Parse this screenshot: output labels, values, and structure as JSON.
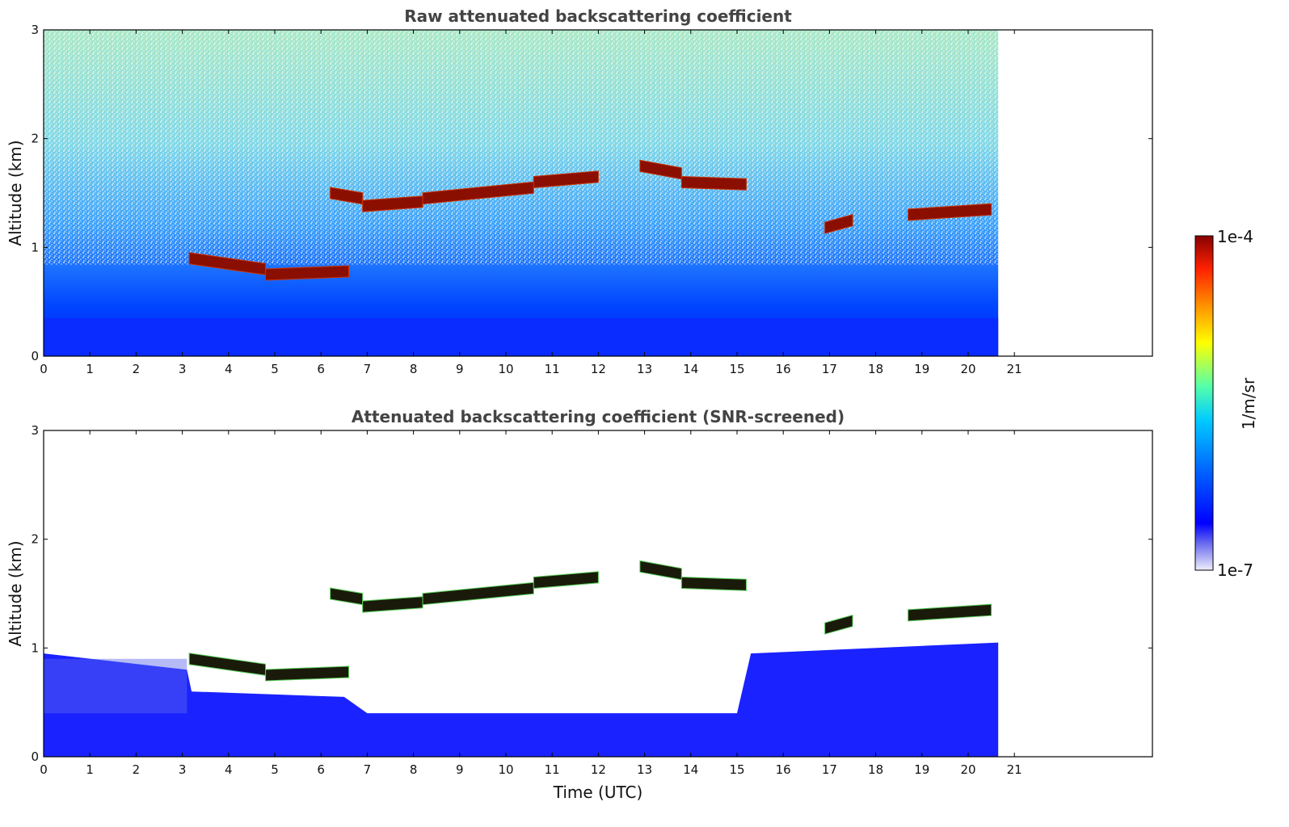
{
  "chart_data": [
    {
      "type": "heatmap",
      "title": "Raw attenuated backscattering coefficient",
      "xlabel": "",
      "ylabel": "Altitude (km)",
      "xlim": [
        0,
        24
      ],
      "ylim": [
        0,
        3
      ],
      "xticks": [
        "0",
        "1",
        "2",
        "3",
        "4",
        "5",
        "6",
        "7",
        "8",
        "9",
        "10",
        "11",
        "12",
        "13",
        "14",
        "15",
        "16",
        "17",
        "18",
        "19",
        "20",
        "21"
      ],
      "yticks": [
        "0",
        "1",
        "2",
        "3"
      ],
      "data_end_time": 20.65,
      "cloud_layers": [
        {
          "t_start": 3.15,
          "t_end": 4.8,
          "alt_start": 0.9,
          "alt_end": 0.8,
          "value": 0.0001
        },
        {
          "t_start": 4.8,
          "t_end": 6.6,
          "alt_start": 0.75,
          "alt_end": 0.78,
          "value": 0.0001
        },
        {
          "t_start": 6.2,
          "t_end": 6.9,
          "alt_start": 1.5,
          "alt_end": 1.45,
          "value": 0.0001
        },
        {
          "t_start": 6.9,
          "t_end": 8.2,
          "alt_start": 1.38,
          "alt_end": 1.42,
          "value": 0.0001
        },
        {
          "t_start": 8.2,
          "t_end": 10.6,
          "alt_start": 1.45,
          "alt_end": 1.55,
          "value": 0.0001
        },
        {
          "t_start": 10.6,
          "t_end": 12.0,
          "alt_start": 1.6,
          "alt_end": 1.65,
          "value": 0.0001
        },
        {
          "t_start": 12.9,
          "t_end": 13.8,
          "alt_start": 1.75,
          "alt_end": 1.68,
          "value": 0.0001
        },
        {
          "t_start": 13.8,
          "t_end": 15.2,
          "alt_start": 1.6,
          "alt_end": 1.58,
          "value": 0.0001
        },
        {
          "t_start": 16.9,
          "t_end": 17.5,
          "alt_start": 1.18,
          "alt_end": 1.25,
          "value": 0.0001
        },
        {
          "t_start": 18.7,
          "t_end": 20.5,
          "alt_start": 1.3,
          "alt_end": 1.35,
          "value": 0.0001
        }
      ]
    },
    {
      "type": "heatmap",
      "title": "Attenuated backscattering coefficient (SNR-screened)",
      "xlabel": "Time (UTC)",
      "ylabel": "Altitude (km)",
      "xlim": [
        0,
        24
      ],
      "ylim": [
        0,
        3
      ],
      "xticks": [
        "0",
        "1",
        "2",
        "3",
        "4",
        "5",
        "6",
        "7",
        "8",
        "9",
        "10",
        "11",
        "12",
        "13",
        "14",
        "15",
        "16",
        "17",
        "18",
        "19",
        "20",
        "21"
      ],
      "yticks": [
        "0",
        "1",
        "2",
        "3"
      ],
      "data_end_time": 20.65,
      "boundary_layer_top": [
        {
          "t": 0,
          "alt": 0.95
        },
        {
          "t": 3.1,
          "alt": 0.8
        },
        {
          "t": 3.2,
          "alt": 0.6
        },
        {
          "t": 6.5,
          "alt": 0.55
        },
        {
          "t": 7.0,
          "alt": 0.4
        },
        {
          "t": 15.0,
          "alt": 0.4
        },
        {
          "t": 15.3,
          "alt": 0.95
        },
        {
          "t": 20.65,
          "alt": 1.05
        }
      ]
    }
  ],
  "colorbar": {
    "label": "1/m/sr",
    "min_label": "1e-7",
    "max_label": "1e-4",
    "scale": "log",
    "colors": [
      "#e8e8f8",
      "#6a6aee",
      "#0000ff",
      "#0066ff",
      "#00ccff",
      "#55ffaa",
      "#ffff00",
      "#ff8800",
      "#ff2200",
      "#880000"
    ]
  }
}
